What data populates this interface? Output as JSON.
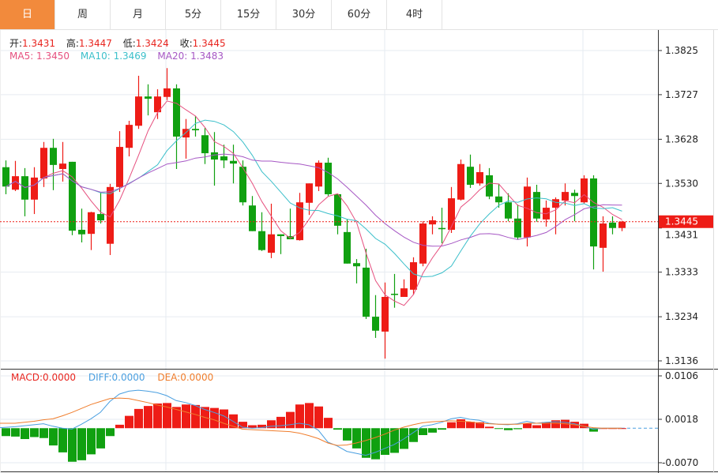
{
  "tabs": [
    {
      "label": "日",
      "active": true
    },
    {
      "label": "周"
    },
    {
      "label": "月"
    },
    {
      "label": "5分"
    },
    {
      "label": "15分"
    },
    {
      "label": "30分"
    },
    {
      "label": "60分"
    },
    {
      "label": "4时"
    }
  ],
  "legend": {
    "open_label": "开:",
    "open": "1.3431",
    "high_label": "高:",
    "high": "1.3447",
    "low_label": "低:",
    "low": "1.3424",
    "close_label": "收:",
    "close": "1.3445",
    "ma5": "MA5: 1.3450",
    "ma10": "MA10: 1.3469",
    "ma20": "MA20: 1.3483"
  },
  "macd_legend": {
    "macd": "MACD:0.0000",
    "diff": "DIFF:0.0000",
    "dea": "DEA:0.0000"
  },
  "colors": {
    "up": "#ee1c16",
    "down": "#10a010",
    "ma5": "#e6507f",
    "ma10": "#3bbfca",
    "ma20": "#a657c4",
    "diff": "#4a9fe0",
    "dea": "#f07d2c",
    "active_tab": "#f28a3c"
  },
  "chart_data": {
    "type": "candlestick",
    "ohlc_order": [
      "open",
      "high",
      "low",
      "close"
    ],
    "candles": [
      [
        1.3566,
        1.3581,
        1.3506,
        1.3523
      ],
      [
        1.3516,
        1.358,
        1.3513,
        1.3546
      ],
      [
        1.3546,
        1.3564,
        1.3457,
        1.3494
      ],
      [
        1.3494,
        1.3566,
        1.3462,
        1.3543
      ],
      [
        1.3541,
        1.3622,
        1.3522,
        1.3609
      ],
      [
        1.3609,
        1.3629,
        1.3515,
        1.3571
      ],
      [
        1.3562,
        1.3622,
        1.3534,
        1.3574
      ],
      [
        1.3578,
        1.3578,
        1.3415,
        1.3425
      ],
      [
        1.3427,
        1.3474,
        1.3399,
        1.3417
      ],
      [
        1.3418,
        1.3467,
        1.3382,
        1.3466
      ],
      [
        1.3462,
        1.3509,
        1.3441,
        1.3448
      ],
      [
        1.3396,
        1.3529,
        1.3371,
        1.3522
      ],
      [
        1.3522,
        1.3646,
        1.3511,
        1.3611
      ],
      [
        1.3609,
        1.3669,
        1.359,
        1.366
      ],
      [
        1.3658,
        1.3769,
        1.3651,
        1.3723
      ],
      [
        1.3723,
        1.375,
        1.3681,
        1.3718
      ],
      [
        1.3688,
        1.3739,
        1.3673,
        1.3723
      ],
      [
        1.3722,
        1.3786,
        1.3715,
        1.3741
      ],
      [
        1.3741,
        1.375,
        1.3562,
        1.3634
      ],
      [
        1.3632,
        1.3673,
        1.3585,
        1.3651
      ],
      [
        1.3651,
        1.368,
        1.3634,
        1.3648
      ],
      [
        1.3637,
        1.3653,
        1.3573,
        1.3597
      ],
      [
        1.3599,
        1.3644,
        1.3525,
        1.3583
      ],
      [
        1.359,
        1.3616,
        1.3564,
        1.3581
      ],
      [
        1.358,
        1.3616,
        1.353,
        1.3574
      ],
      [
        1.3567,
        1.3581,
        1.3481,
        1.3488
      ],
      [
        1.3481,
        1.3502,
        1.3424,
        1.3424
      ],
      [
        1.3424,
        1.3466,
        1.338,
        1.3382
      ],
      [
        1.3376,
        1.3485,
        1.3364,
        1.3417
      ],
      [
        1.3417,
        1.3417,
        1.3373,
        1.3413
      ],
      [
        1.3413,
        1.3474,
        1.3406,
        1.3406
      ],
      [
        1.3404,
        1.3509,
        1.3403,
        1.3488
      ],
      [
        1.3487,
        1.353,
        1.346,
        1.353
      ],
      [
        1.3523,
        1.3581,
        1.3513,
        1.3576
      ],
      [
        1.3576,
        1.3587,
        1.3502,
        1.3506
      ],
      [
        1.3506,
        1.3506,
        1.3417,
        1.3436
      ],
      [
        1.3422,
        1.345,
        1.3352,
        1.3352
      ],
      [
        1.3353,
        1.3362,
        1.3308,
        1.3346
      ],
      [
        1.3343,
        1.3385,
        1.3229,
        1.3234
      ],
      [
        1.3234,
        1.3282,
        1.3187,
        1.3203
      ],
      [
        1.3201,
        1.331,
        1.3141,
        1.3278
      ],
      [
        1.3285,
        1.3329,
        1.3254,
        1.3283
      ],
      [
        1.3278,
        1.3317,
        1.3278,
        1.3297
      ],
      [
        1.3294,
        1.3366,
        1.3283,
        1.3355
      ],
      [
        1.3352,
        1.3446,
        1.3346,
        1.3441
      ],
      [
        1.3439,
        1.3457,
        1.3417,
        1.3448
      ],
      [
        1.3431,
        1.3476,
        1.3397,
        1.3429
      ],
      [
        1.3427,
        1.3522,
        1.342,
        1.3497
      ],
      [
        1.3494,
        1.3583,
        1.3492,
        1.3573
      ],
      [
        1.3567,
        1.3594,
        1.352,
        1.3527
      ],
      [
        1.353,
        1.3573,
        1.3525,
        1.3555
      ],
      [
        1.3548,
        1.3564,
        1.3495,
        1.3501
      ],
      [
        1.3501,
        1.3529,
        1.3476,
        1.3488
      ],
      [
        1.3488,
        1.3508,
        1.3446,
        1.3452
      ],
      [
        1.3452,
        1.3483,
        1.3406,
        1.341
      ],
      [
        1.341,
        1.3543,
        1.339,
        1.3523
      ],
      [
        1.3511,
        1.3527,
        1.3445,
        1.3452
      ],
      [
        1.345,
        1.3492,
        1.3434,
        1.3476
      ],
      [
        1.3476,
        1.3499,
        1.3417,
        1.3495
      ],
      [
        1.3492,
        1.353,
        1.3481,
        1.3511
      ],
      [
        1.3509,
        1.3516,
        1.3446,
        1.3502
      ],
      [
        1.3488,
        1.3548,
        1.3485,
        1.3541
      ],
      [
        1.3541,
        1.3548,
        1.3339,
        1.339
      ],
      [
        1.3387,
        1.3457,
        1.3334,
        1.3441
      ],
      [
        1.3443,
        1.3457,
        1.3417,
        1.3431
      ],
      [
        1.3431,
        1.3447,
        1.3424,
        1.3445
      ]
    ],
    "ma_periods": [
      5,
      10,
      20
    ],
    "y_ticks": [
      "1.3825",
      "1.3727",
      "1.3628",
      "1.3530",
      "1.3431",
      "1.3333",
      "1.3234",
      "1.3136"
    ],
    "ylim": [
      1.3136,
      1.3825
    ],
    "current_price": "1.3445",
    "grid": true,
    "macd": {
      "y_ticks": [
        "0.0106",
        "0.0018",
        "-0.0070"
      ],
      "ylim": [
        -0.007,
        0.0106
      ],
      "hist": [
        -0.0016,
        -0.0017,
        -0.0022,
        -0.0018,
        -0.002,
        -0.0035,
        -0.0049,
        -0.0068,
        -0.0065,
        -0.0053,
        -0.0041,
        -0.0016,
        0.0007,
        0.0025,
        0.0039,
        0.0045,
        0.005,
        0.0051,
        0.0043,
        0.0048,
        0.0047,
        0.0043,
        0.0041,
        0.0038,
        0.0028,
        0.0013,
        0.0006,
        0.0007,
        0.0016,
        0.0023,
        0.0033,
        0.0048,
        0.0051,
        0.0044,
        0.0021,
        -0.0003,
        -0.0025,
        -0.0041,
        -0.006,
        -0.0063,
        -0.0054,
        -0.005,
        -0.0042,
        -0.0028,
        -0.0014,
        -0.0009,
        -0.0003,
        0.0012,
        0.0018,
        0.0013,
        0.0012,
        0.0003,
        -0.0001,
        -0.0004,
        -0.0002,
        0.001,
        0.0006,
        0.0012,
        0.0016,
        0.0017,
        0.0013,
        0.0009,
        -0.0007,
        0.0,
        0.0,
        0.0
      ],
      "diff": [
        0.0001,
        0.0003,
        0.0005,
        0.0007,
        0.0009,
        0.0004,
        0.0,
        -0.0002,
        0.0008,
        0.0019,
        0.0032,
        0.0054,
        0.0069,
        0.0075,
        0.0077,
        0.0075,
        0.0072,
        0.0066,
        0.0056,
        0.0052,
        0.0046,
        0.0038,
        0.0032,
        0.0025,
        0.0014,
        0.0002,
        0.0,
        0.0001,
        0.0004,
        0.0005,
        0.0007,
        0.001,
        0.0007,
        -0.0004,
        -0.0028,
        -0.0036,
        -0.0047,
        -0.0051,
        -0.0055,
        -0.0049,
        -0.0041,
        -0.0033,
        -0.0022,
        -0.0009,
        0.0004,
        0.0007,
        0.0012,
        0.0019,
        0.0022,
        0.0018,
        0.0016,
        0.001,
        0.0008,
        0.0007,
        0.0009,
        0.0014,
        0.001,
        0.0012,
        0.0013,
        0.0012,
        0.0009,
        0.0004,
        -0.0002,
        0.0,
        0.0,
        0.0
      ],
      "dea": [
        0.001,
        0.001,
        0.0012,
        0.0014,
        0.0017,
        0.0019,
        0.0025,
        0.0032,
        0.004,
        0.0048,
        0.0054,
        0.006,
        0.0061,
        0.006,
        0.0056,
        0.0052,
        0.0047,
        0.0043,
        0.0038,
        0.0033,
        0.0028,
        0.0022,
        0.0017,
        0.001,
        0.0004,
        -0.0002,
        -0.0003,
        -0.0004,
        -0.0005,
        -0.0006,
        -0.0007,
        -0.001,
        -0.0015,
        -0.0021,
        -0.003,
        -0.0035,
        -0.0034,
        -0.003,
        -0.0025,
        -0.0019,
        -0.0012,
        -0.0004,
        0.0002,
        0.0007,
        0.0011,
        0.0013,
        0.0014,
        0.0015,
        0.0014,
        0.0013,
        0.001,
        0.0009,
        0.0008,
        0.0008,
        0.0008,
        0.001,
        0.001,
        0.001,
        0.001,
        0.0009,
        0.0007,
        0.0004,
        0.0001,
        0.0,
        0.0,
        0.0
      ]
    }
  }
}
